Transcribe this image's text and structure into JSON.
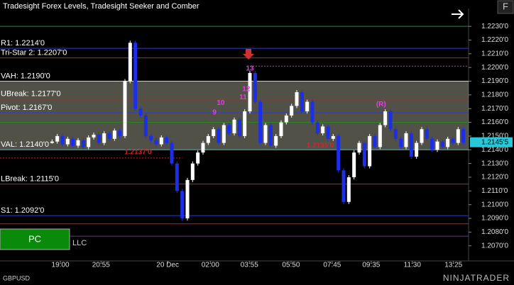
{
  "chart_data": {
    "type": "candlestick",
    "title": "Tradesight Forex Levels, Tradesight Seeker and Comber",
    "symbol": "GBPUSD",
    "button": "PC",
    "footer_text": "LLC",
    "logo": "NINJATRADER",
    "xlim": [
      0,
      90
    ],
    "ylim": [
      1.2059,
      1.2243
    ],
    "xticks": [
      {
        "value": 11.6,
        "label": "19:00"
      },
      {
        "value": 19.4,
        "label": "20:55"
      },
      {
        "value": 32.2,
        "label": "20 Dec"
      },
      {
        "value": 40.4,
        "label": "02:00"
      },
      {
        "value": 47.9,
        "label": "03:55"
      },
      {
        "value": 55.9,
        "label": "05:50"
      },
      {
        "value": 63.8,
        "label": "07:45"
      },
      {
        "value": 71.3,
        "label": "09:35"
      },
      {
        "value": 79.2,
        "label": "11:30"
      },
      {
        "value": 87.1,
        "label": "13:25"
      }
    ],
    "yticks": [
      {
        "value": 1.223,
        "label": "1.2230'0"
      },
      {
        "value": 1.222,
        "label": "1.2220'0"
      },
      {
        "value": 1.221,
        "label": "1.2210'0"
      },
      {
        "value": 1.22,
        "label": "1.2200'0"
      },
      {
        "value": 1.219,
        "label": "1.2190'0"
      },
      {
        "value": 1.218,
        "label": "1.2180'0"
      },
      {
        "value": 1.217,
        "label": "1.2170'0"
      },
      {
        "value": 1.216,
        "label": "1.2160'0"
      },
      {
        "value": 1.215,
        "label": "1.2150'0"
      },
      {
        "value": 1.214,
        "label": "1.2140'0"
      },
      {
        "value": 1.213,
        "label": "1.2130'0"
      },
      {
        "value": 1.212,
        "label": "1.2120'0"
      },
      {
        "value": 1.211,
        "label": "1.2110'0"
      },
      {
        "value": 1.21,
        "label": "1.2100'0"
      },
      {
        "value": 1.209,
        "label": "1.2090'0"
      },
      {
        "value": 1.208,
        "label": "1.2080'0"
      },
      {
        "value": 1.207,
        "label": "1.2070'0"
      }
    ],
    "x": [
      10,
      11,
      12,
      13,
      14,
      15,
      16,
      17,
      18,
      19,
      20,
      21,
      22,
      23,
      24,
      25,
      26,
      27,
      28,
      29,
      30,
      31,
      32,
      33,
      34,
      35,
      36,
      37,
      38,
      39,
      40,
      41,
      42,
      43,
      44,
      45,
      46,
      47,
      48,
      49,
      50,
      51,
      52,
      53,
      54,
      55,
      56,
      57,
      58,
      59,
      60,
      61,
      62,
      63,
      64,
      65,
      66,
      67,
      68,
      69,
      70,
      71,
      72,
      73,
      74,
      75,
      76,
      77,
      78,
      79,
      80,
      81,
      82,
      83,
      84,
      85,
      86,
      87,
      88,
      89
    ],
    "close": [
      1.2146,
      1.215,
      1.2144,
      1.2148,
      1.2143,
      1.2147,
      1.2142,
      1.2149,
      1.2151,
      1.2145,
      1.2152,
      1.2148,
      1.2154,
      1.215,
      1.219,
      1.2218,
      1.217,
      1.2165,
      1.215,
      1.2147,
      1.2144,
      1.2149,
      1.2145,
      1.213,
      1.211,
      1.209,
      1.2118,
      1.213,
      1.2138,
      1.2145,
      1.215,
      1.2155,
      1.2145,
      1.2158,
      1.2152,
      1.2162,
      1.215,
      1.2168,
      1.2196,
      1.2175,
      1.2145,
      1.2158,
      1.2143,
      1.215,
      1.216,
      1.2165,
      1.2172,
      1.2182,
      1.2168,
      1.2175,
      1.216,
      1.2152,
      1.2157,
      1.2148,
      1.215,
      1.2125,
      1.2102,
      1.212,
      1.2138,
      1.2145,
      1.2128,
      1.215,
      1.2142,
      1.2158,
      1.2168,
      1.2155,
      1.2148,
      1.2142,
      1.2152,
      1.2135,
      1.2145,
      1.2155,
      1.2148,
      1.214,
      1.2146,
      1.2142,
      1.2148,
      1.2145,
      1.2155,
      1.2145
    ],
    "up_color": "#ffffff",
    "down_color": "#1c2ee8",
    "value_area": {
      "high": 1.219,
      "low": 1.214,
      "color": "#b4b4a0"
    },
    "levels": [
      {
        "value": 1.223,
        "color": "#1f8f1f"
      },
      {
        "value": 1.2214,
        "color": "#2a3ad8",
        "label": "R1: 1.2214'0"
      },
      {
        "value": 1.2207,
        "color": "#c81e1e",
        "label": "Tri-Star 2: 1.2207'0"
      },
      {
        "value": 1.2201,
        "color": "#c828c8",
        "from": 48,
        "dashed": true
      },
      {
        "value": 1.219,
        "color": "#d0d0c0",
        "label": "VAH: 1.2190'0"
      },
      {
        "value": 1.2177,
        "color": "#c81e1e",
        "label": "UBreak: 1.2177'0"
      },
      {
        "value": 1.2167,
        "color": "#2a3ad8",
        "label": "Pivot: 1.2167'0"
      },
      {
        "value": 1.216,
        "color": "#1f8f1f"
      },
      {
        "value": 1.214,
        "color": "#28c8d8",
        "label": "VAL: 1.2140'0"
      },
      {
        "value": 1.2134,
        "color": "#c81e1e",
        "to": 35,
        "dashed": true
      },
      {
        "value": 1.2115,
        "color": "#c81e1e",
        "label": "LBreak: 1.2115'0"
      },
      {
        "value": 1.2092,
        "color": "#2a3ad8",
        "label": "S1: 1.2092'0"
      },
      {
        "value": 1.2086,
        "color": "#c81e1e"
      },
      {
        "value": 1.2077,
        "color": "#7a2a9a"
      }
    ],
    "annotations": [
      {
        "text": "13",
        "x": 48,
        "y": 1.2196,
        "color": "#e040e0"
      },
      {
        "text": "12",
        "x": 47.3,
        "y": 1.2181,
        "color": "#e040e0"
      },
      {
        "text": "11",
        "x": 46.7,
        "y": 1.2175,
        "color": "#e040e0"
      },
      {
        "text": "10",
        "x": 42.4,
        "y": 1.2171,
        "color": "#e040e0"
      },
      {
        "text": "9",
        "x": 41.2,
        "y": 1.2164,
        "color": "#e040e0"
      },
      {
        "text": "(R)",
        "x": 73.2,
        "y": 1.217,
        "color": "#e040e0"
      },
      {
        "text": "1.2137'0",
        "x": 26.5,
        "y": 1.2135,
        "color": "#d02828"
      },
      {
        "text": "1.2135'0",
        "x": 61.5,
        "y": 1.214,
        "color": "#d02828"
      }
    ],
    "last_price": {
      "value": 1.21455,
      "label": "1.2145'5"
    }
  }
}
